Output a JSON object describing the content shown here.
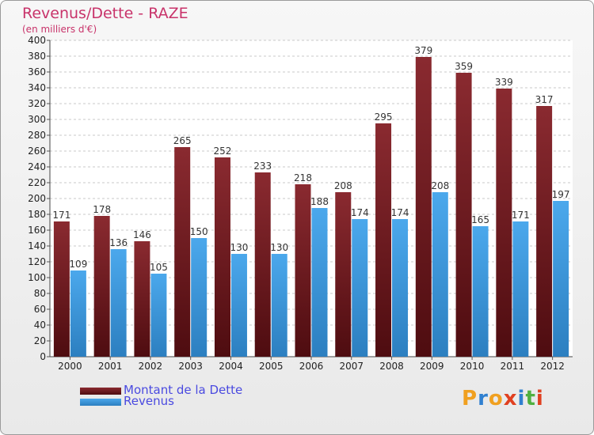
{
  "title": "Revenus/Dette - RAZE",
  "subtitle": "(en milliers d'€)",
  "logo": {
    "text": "Proxiti",
    "letter_colors": [
      "#f0a020",
      "#3080d0",
      "#f0a020",
      "#e04020",
      "#3080d0",
      "#50b040",
      "#e04020"
    ]
  },
  "colors": {
    "dette": "#7a1c22",
    "revenus": "#3d96d8",
    "title": "#c8336a",
    "legend_text": "#4a4ae0"
  },
  "chart_data": {
    "type": "bar",
    "categories": [
      "2000",
      "2001",
      "2002",
      "2003",
      "2004",
      "2005",
      "2006",
      "2007",
      "2008",
      "2009",
      "2010",
      "2011",
      "2012"
    ],
    "series": [
      {
        "name": "Montant de la Dette",
        "values": [
          171,
          178,
          146,
          265,
          252,
          233,
          218,
          208,
          295,
          379,
          359,
          339,
          317
        ]
      },
      {
        "name": "Revenus",
        "values": [
          109,
          136,
          105,
          150,
          130,
          130,
          188,
          174,
          174,
          208,
          165,
          171,
          197
        ]
      }
    ],
    "ylim": [
      0,
      400
    ],
    "ytick_step": 20,
    "grid": true,
    "legend_position": "bottom-left"
  }
}
